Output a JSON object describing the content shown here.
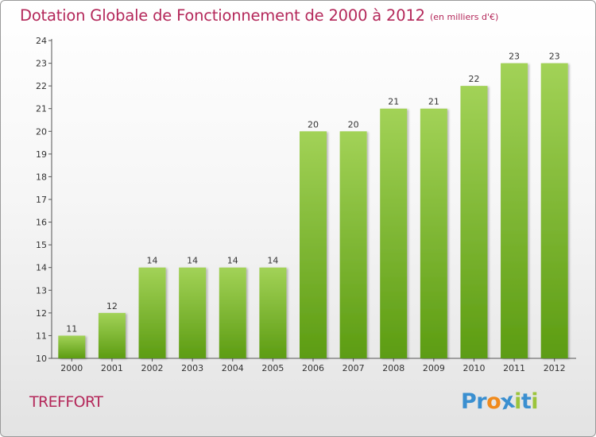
{
  "header": {
    "title": "Dotation Globale de Fonctionnement de 2000 à 2012",
    "unit": "(en milliers d'€)"
  },
  "footer": {
    "commune": "TREFFORT",
    "logo_text": "Proxiti",
    "logo_letters": [
      {
        "char": "P",
        "color": "#3a8fd0"
      },
      {
        "char": "r",
        "color": "#3a8fd0"
      },
      {
        "char": "o",
        "color": "#f08a1c"
      },
      {
        "char": "x",
        "color": "#3a8fd0"
      },
      {
        "char": "i",
        "color": "#9bc43c"
      },
      {
        "char": "t",
        "color": "#3a8fd0"
      },
      {
        "char": "i",
        "color": "#9bc43c"
      }
    ]
  },
  "colors": {
    "accent": "#b4285a",
    "bar_light": "#9ed050",
    "bar_dark": "#5fa014",
    "axis": "#555555"
  },
  "chart_data": {
    "type": "bar",
    "title": "Dotation Globale de Fonctionnement de 2000 à 2012",
    "subtitle": "(en milliers d'€)",
    "xlabel": "",
    "ylabel": "",
    "categories": [
      "2000",
      "2001",
      "2002",
      "2003",
      "2004",
      "2005",
      "2006",
      "2007",
      "2008",
      "2009",
      "2010",
      "2011",
      "2012"
    ],
    "values": [
      11,
      12,
      14,
      14,
      14,
      14,
      20,
      20,
      21,
      21,
      22,
      23,
      23
    ],
    "ylim": [
      10,
      24
    ],
    "yticks": [
      10,
      11,
      12,
      13,
      14,
      15,
      16,
      17,
      18,
      19,
      20,
      21,
      22,
      23,
      24
    ],
    "grid": false,
    "legend": "none"
  }
}
